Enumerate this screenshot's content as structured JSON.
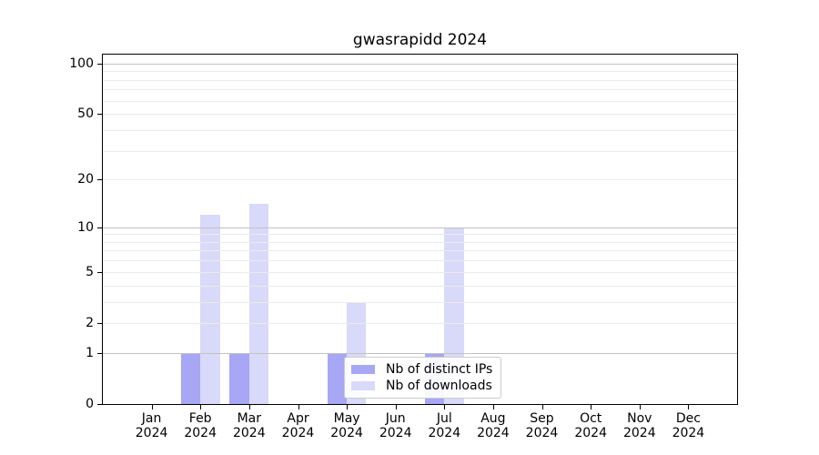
{
  "title": "gwasrapidd 2024",
  "colors": {
    "distinct_ips_bar": "#a7a7f5",
    "downloads_bar": "#d9d9f9",
    "grid_major": "#c2c2c2",
    "grid_minor": "#ebebeb",
    "axis_spine": "#000000",
    "legend_border": "#cccccc"
  },
  "legend": {
    "items": [
      {
        "label": "Nb of distinct IPs",
        "series": "distinct_ips"
      },
      {
        "label": "Nb of downloads",
        "series": "downloads"
      }
    ]
  },
  "y_axis": {
    "tick_labels": [
      "0",
      "1",
      "2",
      "5",
      "10",
      "20",
      "50",
      "100"
    ],
    "tick_values": [
      0,
      1,
      2,
      5,
      10,
      20,
      50,
      100
    ],
    "major_gridlines": [
      1,
      10,
      100
    ],
    "minor_gridlines": [
      2,
      3,
      4,
      5,
      6,
      7,
      8,
      9,
      20,
      30,
      40,
      50,
      60,
      70,
      80,
      90
    ]
  },
  "chart_data": {
    "type": "bar",
    "title": "gwasrapidd 2024",
    "xlabel": "",
    "ylabel": "",
    "categories": [
      "Jan 2024",
      "Feb 2024",
      "Mar 2024",
      "Apr 2024",
      "May 2024",
      "Jun 2024",
      "Jul 2024",
      "Aug 2024",
      "Sep 2024",
      "Oct 2024",
      "Nov 2024",
      "Dec 2024"
    ],
    "series": [
      {
        "name": "Nb of distinct IPs",
        "color": "#a7a7f5",
        "values": [
          0,
          1,
          1,
          0,
          1,
          0,
          1,
          0,
          0,
          0,
          0,
          0
        ]
      },
      {
        "name": "Nb of downloads",
        "color": "#d9d9f9",
        "values": [
          0,
          12,
          14,
          0,
          3,
          0,
          10,
          0,
          0,
          0,
          0,
          0
        ]
      }
    ],
    "y_scale": "log1p",
    "y_ticks": [
      0,
      1,
      2,
      5,
      10,
      20,
      50,
      100
    ],
    "ylim": [
      0,
      113
    ],
    "grid": "horizontal",
    "legend_position": "lower center inside"
  }
}
